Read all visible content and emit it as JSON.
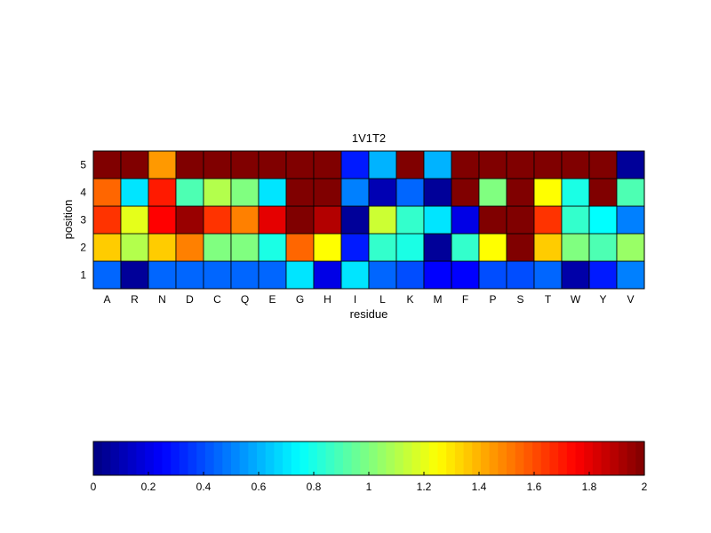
{
  "chart_data": {
    "type": "heatmap",
    "title": "1V1T2",
    "xlabel": "residue",
    "ylabel": "position",
    "x_categories": [
      "A",
      "R",
      "N",
      "D",
      "C",
      "Q",
      "E",
      "G",
      "H",
      "I",
      "L",
      "K",
      "M",
      "F",
      "P",
      "S",
      "T",
      "W",
      "Y",
      "V"
    ],
    "y_categories": [
      "1",
      "2",
      "3",
      "4",
      "5"
    ],
    "colormap": "jet",
    "clim": [
      0,
      2
    ],
    "values": [
      [
        0.45,
        0.05,
        0.45,
        0.45,
        0.45,
        0.45,
        0.45,
        0.7,
        0.2,
        0.7,
        0.45,
        0.4,
        0.25,
        0.25,
        0.4,
        0.4,
        0.45,
        0.08,
        0.3,
        0.5
      ],
      [
        1.35,
        1.1,
        1.35,
        1.5,
        1.0,
        1.0,
        0.8,
        1.55,
        1.25,
        0.3,
        0.85,
        0.8,
        0.05,
        0.85,
        1.25,
        2.0,
        1.35,
        1.0,
        0.9,
        1.05
      ],
      [
        1.65,
        1.2,
        1.75,
        1.95,
        1.65,
        1.5,
        1.8,
        2.0,
        1.9,
        0.05,
        1.15,
        0.85,
        0.7,
        0.2,
        2.0,
        2.0,
        1.65,
        0.85,
        0.75,
        0.5
      ],
      [
        1.55,
        0.7,
        1.7,
        0.9,
        1.1,
        1.0,
        0.7,
        2.0,
        2.0,
        0.5,
        0.1,
        0.45,
        0.05,
        2.0,
        1.0,
        2.0,
        1.25,
        0.8,
        2.0,
        0.9
      ],
      [
        2.0,
        2.0,
        1.45,
        2.0,
        2.0,
        2.0,
        2.0,
        2.0,
        2.0,
        0.3,
        0.6,
        2.0,
        0.6,
        2.0,
        2.0,
        2.0,
        2.0,
        2.0,
        2.0,
        0.05
      ]
    ],
    "colorbar": {
      "ticks": [
        0,
        0.2,
        0.4,
        0.6,
        0.8,
        1,
        1.2,
        1.4,
        1.6,
        1.8,
        2
      ],
      "tick_labels": [
        "0",
        "0.2",
        "0.4",
        "0.6",
        "0.8",
        "1",
        "1.2",
        "1.4",
        "1.6",
        "1.8",
        "2"
      ]
    }
  }
}
